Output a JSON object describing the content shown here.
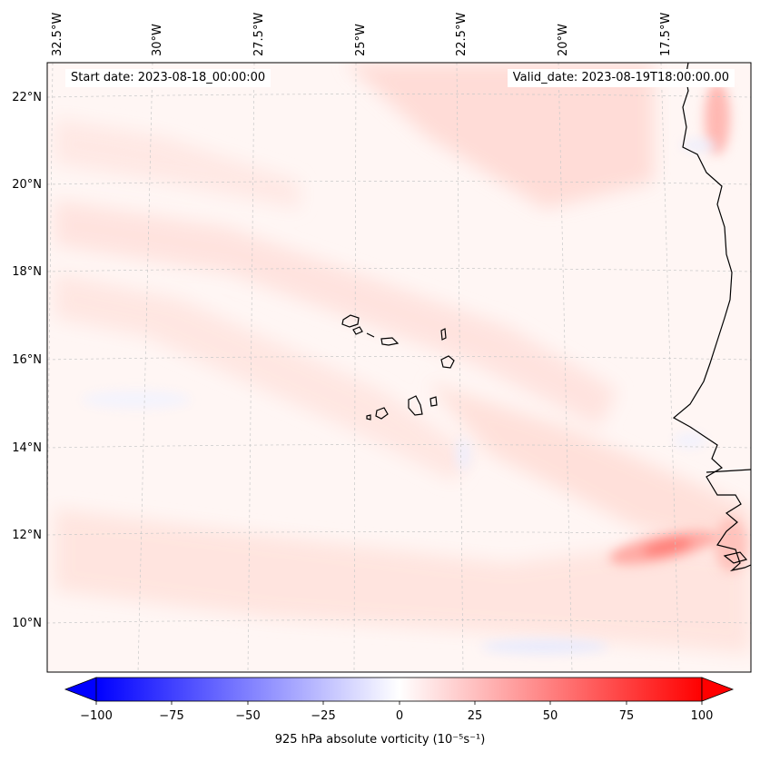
{
  "header": {
    "start_date": "Start date: 2023-08-18_00:00:00",
    "valid_date": "Valid_date: 2023-08-19T18:00:00.00"
  },
  "map": {
    "lon_labels": [
      "32.5°W",
      "30°W",
      "27.5°W",
      "25°W",
      "22.5°W",
      "20°W",
      "17.5°W"
    ],
    "lat_labels": [
      "22°N",
      "20°N",
      "18°N",
      "16°N",
      "14°N",
      "12°N",
      "10°N"
    ],
    "variable": "925 hPa absolute vorticity"
  },
  "colorbar": {
    "ticks": [
      "−100",
      "−75",
      "−50",
      "−25",
      "0",
      "25",
      "50",
      "75",
      "100"
    ],
    "label": "925 hPa absolute vorticity (10⁻⁵s⁻¹)",
    "cmap": "bwr",
    "min_color": "#0000ff",
    "mid_color": "#ffffff",
    "max_color": "#ff0000"
  }
}
